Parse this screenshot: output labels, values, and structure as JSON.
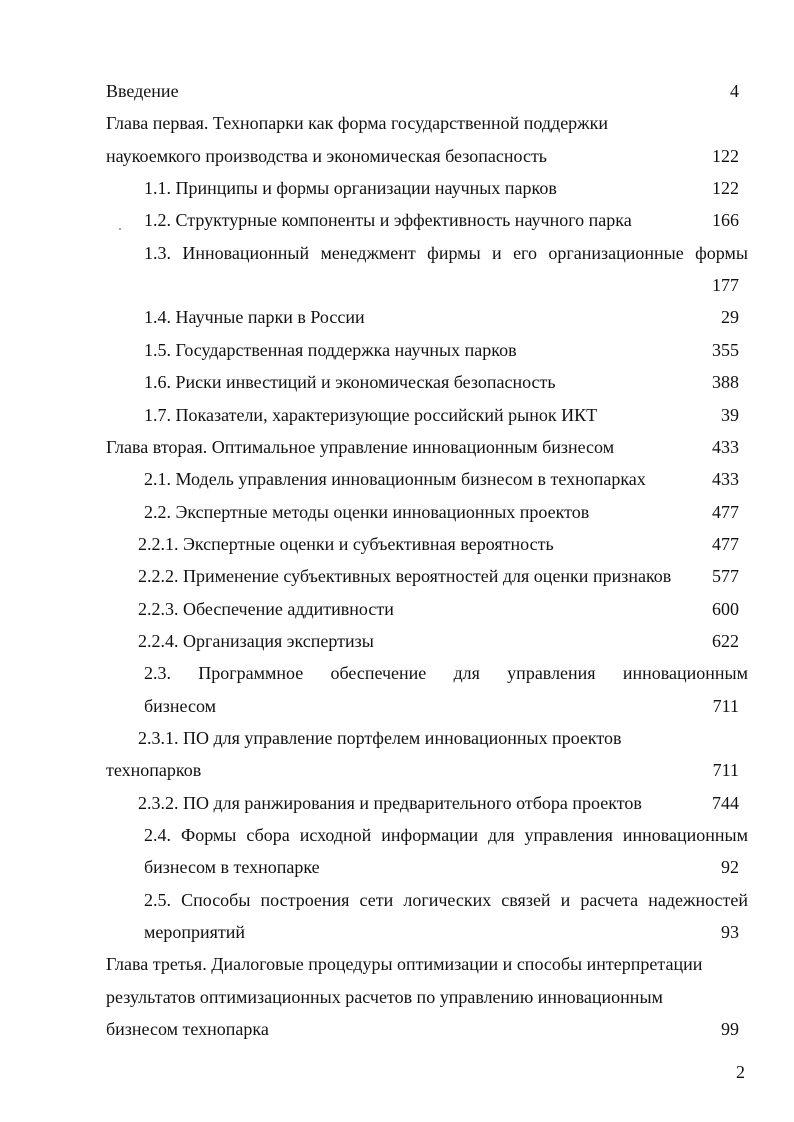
{
  "toc": [
    {
      "level": 0,
      "lines": [
        "Введение"
      ],
      "page": "4"
    },
    {
      "level": 0,
      "lines": [
        "Глава первая. Технопарки как форма государственной поддержки",
        "наукоемкого производства и экономическая безопасность"
      ],
      "page": "122"
    },
    {
      "level": 1,
      "lines": [
        "1.1. Принципы и формы организации научных парков"
      ],
      "page": "122"
    },
    {
      "level": 1,
      "lines": [
        "1.2. Структурные компоненты и эффективность научного парка"
      ],
      "page": "166"
    },
    {
      "level": 1,
      "lines": [
        "1.3. Инновационный менеджмент фирмы и его организационные формы",
        ""
      ],
      "page": "177"
    },
    {
      "level": 1,
      "lines": [
        "1.4. Научные парки в России"
      ],
      "page": "29"
    },
    {
      "level": 1,
      "lines": [
        "1.5. Государственная поддержка научных парков"
      ],
      "page": "355"
    },
    {
      "level": 1,
      "lines": [
        "1.6. Риски инвестиций и экономическая безопасность"
      ],
      "page": "388"
    },
    {
      "level": 1,
      "lines": [
        "1.7. Показатели, характеризующие российский рынок ИКТ"
      ],
      "page": "39"
    },
    {
      "level": 0,
      "lines": [
        "Глава вторая. Оптимальное  управление инновационным бизнесом"
      ],
      "page": "433"
    },
    {
      "level": 1,
      "lines": [
        "2.1. Модель управления инновационным бизнесом в технопарках"
      ],
      "page": "433"
    },
    {
      "level": 1,
      "lines": [
        "2.2. Экспертные методы оценки инновационных проектов"
      ],
      "page": "477"
    },
    {
      "level": 2,
      "lines": [
        "2.2.1. Экспертные оценки и субъективная вероятность"
      ],
      "page": "477"
    },
    {
      "level": 2,
      "lines": [
        "2.2.2. Применение субъективных вероятностей для оценки признаков"
      ],
      "page": "577"
    },
    {
      "level": 2,
      "lines": [
        "2.2.3. Обеспечение аддитивности"
      ],
      "page": "600"
    },
    {
      "level": 2,
      "lines": [
        "2.2.4. Организация экспертизы"
      ],
      "page": "622"
    },
    {
      "level": 1,
      "lines": [
        "2.3. Программное обеспечение для управления инновационным",
        "бизнесом"
      ],
      "page": "711"
    },
    {
      "level": 2,
      "lines": [
        "2.3.1. ПО для управление портфелем инновационных проектов",
        "технопарков"
      ],
      "page": "711"
    },
    {
      "level": 2,
      "lines": [
        "2.3.2. ПО для ранжирования и предварительного отбора проектов"
      ],
      "page": "744"
    },
    {
      "level": 1,
      "lines": [
        "2.4. Формы сбора исходной информации для управления инновационным",
        "бизнесом в технопарке"
      ],
      "page": "92"
    },
    {
      "level": 1,
      "lines": [
        "2.5. Способы построения сети логических связей и расчета надежностей",
        "мероприятий"
      ],
      "page": "93"
    },
    {
      "level": 0,
      "lines": [
        "Глава третья. Диалоговые процедуры оптимизации и способы интерпретации",
        "результатов оптимизационных расчетов по управлению инновационным",
        "бизнесом технопарка"
      ],
      "page": "99"
    }
  ],
  "page_number": "2"
}
